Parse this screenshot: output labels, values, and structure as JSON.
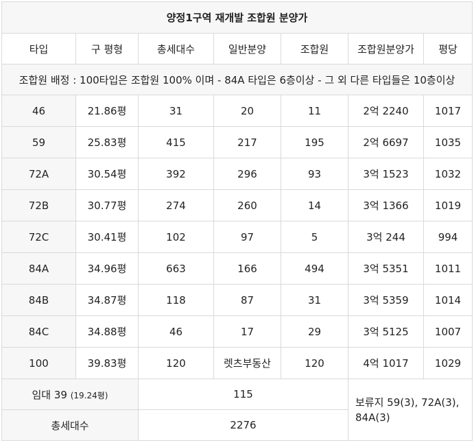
{
  "title": "양정1구역 재개발 조합원 분양가",
  "headers": [
    "타입",
    "구 평형",
    "총세대수",
    "일반분양",
    "조합원",
    "조합원분양가",
    "평당"
  ],
  "note": "조합원 배정 : 100타입은 조합원 100% 이며 - 84A 타입은 6층이상 - 그 외 다른 타입들은 10층이상",
  "rows": [
    {
      "type": "46",
      "area": "21.86평",
      "total": "31",
      "general": "20",
      "member": "11",
      "price": "2억 2240",
      "per": "1017"
    },
    {
      "type": "59",
      "area": "25.83평",
      "total": "415",
      "general": "217",
      "member": "195",
      "price": "2억 6697",
      "per": "1035"
    },
    {
      "type": "72A",
      "area": "30.54평",
      "total": "392",
      "general": "296",
      "member": "93",
      "price": "3억 1523",
      "per": "1032"
    },
    {
      "type": "72B",
      "area": "30.77평",
      "total": "274",
      "general": "260",
      "member": "14",
      "price": "3억 1366",
      "per": "1019"
    },
    {
      "type": "72C",
      "area": "30.41평",
      "total": "102",
      "general": "97",
      "member": "5",
      "price": "3억 244",
      "per": "994"
    },
    {
      "type": "84A",
      "area": "34.96평",
      "total": "663",
      "general": "166",
      "member": "494",
      "price": "3억 5351",
      "per": "1011"
    },
    {
      "type": "84B",
      "area": "34.87평",
      "total": "118",
      "general": "87",
      "member": "31",
      "price": "3억 5359",
      "per": "1014"
    },
    {
      "type": "84C",
      "area": "34.88평",
      "total": "46",
      "general": "17",
      "member": "29",
      "price": "3억 5125",
      "per": "1007"
    },
    {
      "type": "100",
      "area": "39.83평",
      "total": "120",
      "general": "렛츠부동산",
      "member": "120",
      "price": "4억 1017",
      "per": "1029"
    }
  ],
  "rental": {
    "label": "임대 39",
    "sub": "(19.24평)",
    "value": "115"
  },
  "reserve": "보류지 59(3), 72A(3), 84A(3)",
  "total": {
    "label": "총세대수",
    "value": "2276"
  }
}
